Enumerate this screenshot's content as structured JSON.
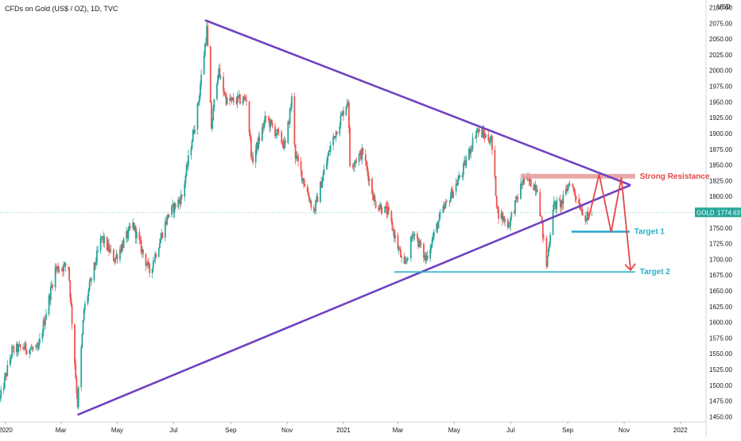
{
  "chart_data": {
    "type": "candlestick",
    "title": "CFDs on Gold (US$ / OZ), 1D, TVC",
    "currency": "USD",
    "y_axis": {
      "ticks": [
        2100,
        2075,
        2050,
        2025,
        2000,
        1975,
        1950,
        1925,
        1900,
        1875,
        1850,
        1825,
        1800,
        1775,
        1750,
        1725,
        1700,
        1675,
        1650,
        1625,
        1600,
        1575,
        1550,
        1525,
        1500,
        1475,
        1450
      ],
      "tick_labels": [
        "2100.00",
        "2075.00",
        "2050.00",
        "2025.00",
        "2000.00",
        "1975.00",
        "1950.00",
        "1925.00",
        "1900.00",
        "1875.00",
        "1850.00",
        "1825.00",
        "1800.00",
        "1775.00",
        "1750.00",
        "1725.00",
        "1700.00",
        "1675.00",
        "1650.00",
        "1625.00",
        "1600.00",
        "1575.00",
        "1550.00",
        "1525.00",
        "1500.00",
        "1475.00",
        "1450.00"
      ],
      "ylim": [
        1443,
        2112
      ]
    },
    "x_axis": {
      "tick_labels": [
        "2020",
        "Mar",
        "May",
        "Jul",
        "Sep",
        "Nov",
        "2021",
        "Mar",
        "May",
        "Jul",
        "Sep",
        "Nov",
        "2022"
      ],
      "tick_dates": [
        "2020-01-01",
        "2020-03-01",
        "2020-05-01",
        "2020-07-01",
        "2020-09-01",
        "2020-11-01",
        "2021-01-01",
        "2021-03-01",
        "2021-05-01",
        "2021-07-01",
        "2021-09-01",
        "2021-11-01",
        "2022-01-01"
      ],
      "xlim": [
        "2019-12-26",
        "2022-01-27"
      ]
    },
    "price_path": [
      [
        "2019-12-26",
        1478
      ],
      [
        "2020-01-08",
        1555
      ],
      [
        "2020-01-20",
        1560
      ],
      [
        "2020-02-05",
        1555
      ],
      [
        "2020-02-24",
        1685
      ],
      [
        "2020-03-09",
        1690
      ],
      [
        "2020-03-19",
        1470
      ],
      [
        "2020-03-26",
        1620
      ],
      [
        "2020-04-14",
        1735
      ],
      [
        "2020-04-28",
        1700
      ],
      [
        "2020-05-18",
        1755
      ],
      [
        "2020-06-05",
        1680
      ],
      [
        "2020-06-25",
        1770
      ],
      [
        "2020-07-10",
        1800
      ],
      [
        "2020-07-27",
        1940
      ],
      [
        "2020-08-06",
        2065
      ],
      [
        "2020-08-11",
        1910
      ],
      [
        "2020-08-18",
        2000
      ],
      [
        "2020-08-28",
        1950
      ],
      [
        "2020-09-18",
        1955
      ],
      [
        "2020-09-24",
        1855
      ],
      [
        "2020-10-09",
        1925
      ],
      [
        "2020-10-30",
        1880
      ],
      [
        "2020-11-06",
        1955
      ],
      [
        "2020-11-10",
        1865
      ],
      [
        "2020-11-30",
        1775
      ],
      [
        "2020-12-18",
        1880
      ],
      [
        "2021-01-06",
        1955
      ],
      [
        "2021-01-08",
        1850
      ],
      [
        "2021-01-22",
        1870
      ],
      [
        "2021-02-04",
        1790
      ],
      [
        "2021-02-18",
        1775
      ],
      [
        "2021-03-08",
        1685
      ],
      [
        "2021-03-18",
        1745
      ],
      [
        "2021-03-31",
        1700
      ],
      [
        "2021-04-15",
        1765
      ],
      [
        "2021-05-10",
        1840
      ],
      [
        "2021-05-25",
        1905
      ],
      [
        "2021-06-10",
        1890
      ],
      [
        "2021-06-17",
        1775
      ],
      [
        "2021-06-29",
        1755
      ],
      [
        "2021-07-15",
        1828
      ],
      [
        "2021-07-30",
        1815
      ],
      [
        "2021-08-09",
        1690
      ],
      [
        "2021-08-16",
        1785
      ],
      [
        "2021-08-26",
        1790
      ],
      [
        "2021-09-03",
        1825
      ],
      [
        "2021-09-13",
        1790
      ],
      [
        "2021-09-21",
        1765
      ],
      [
        "2021-09-27",
        1775
      ]
    ],
    "last_price": {
      "label": "GOLD",
      "value": "1774.63"
    },
    "annotations": [
      {
        "name": "Strong Resistance",
        "level": 1832
      },
      {
        "name": "Target 1",
        "level": 1744
      },
      {
        "name": "Target 2",
        "level": 1680
      }
    ],
    "trendlines": {
      "upper": [
        [
          "2020-08-04",
          2080
        ],
        [
          "2021-11-08",
          1818
        ]
      ],
      "lower": [
        [
          "2020-03-19",
          1453
        ],
        [
          "2021-11-08",
          1818
        ]
      ]
    },
    "support_line": {
      "from": "2021-02-25",
      "to": "2021-11-13",
      "level": 1680
    },
    "target1_line": {
      "from": "2021-09-05",
      "to": "2021-11-07",
      "level": 1744
    },
    "forecast_path": [
      [
        "2021-09-23",
        1762
      ],
      [
        "2021-10-05",
        1835
      ],
      [
        "2021-10-18",
        1743
      ],
      [
        "2021-10-29",
        1830
      ],
      [
        "2021-11-08",
        1683
      ]
    ],
    "colors": {
      "up": "#26a69a",
      "down": "#ef5350",
      "trendline": "#6f42c1",
      "resistance_fill": "#e8a0a0",
      "resistance_line": "#d0393e",
      "resistance_text": "#e04848",
      "target": "#2ab0c8",
      "target1_line": "#1aa2cc",
      "forecast": "#e04848",
      "price_tag": "#26a69a",
      "price_line": "#26a69a"
    }
  }
}
